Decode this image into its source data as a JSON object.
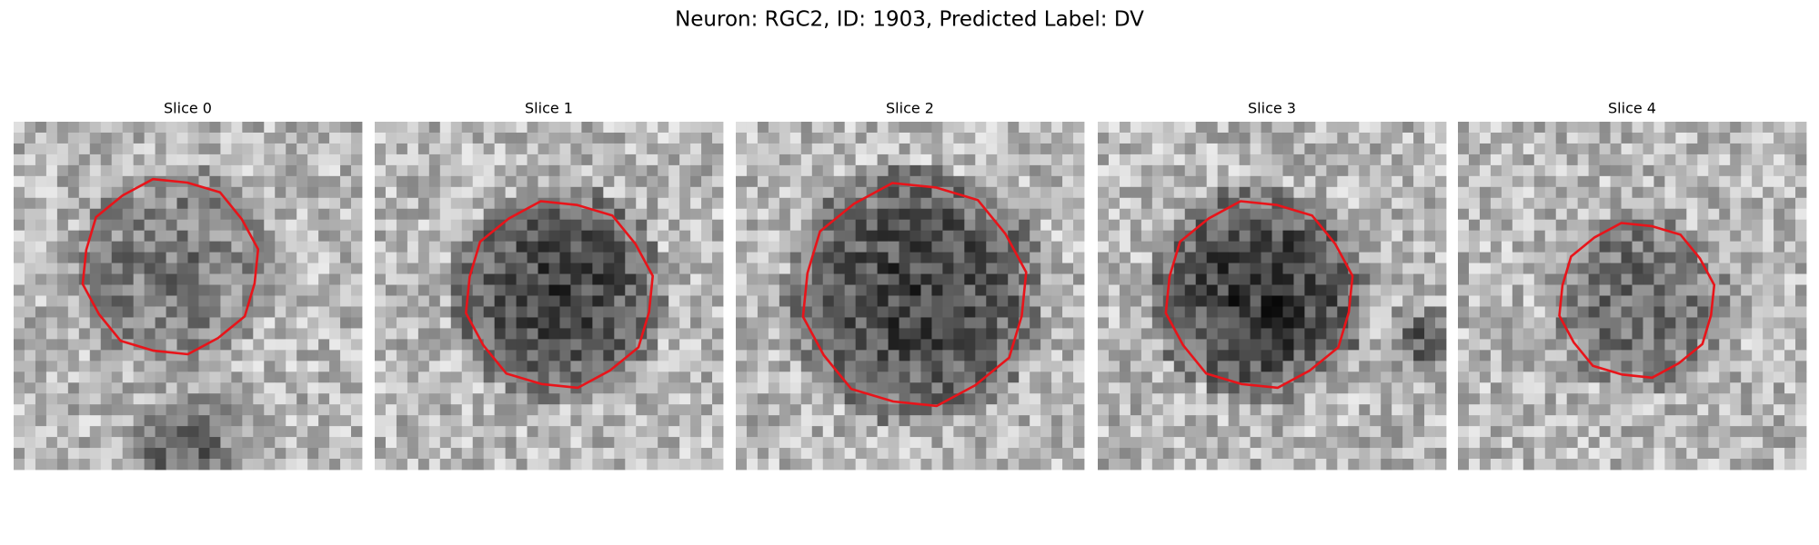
{
  "title": "Neuron: RGC2, ID: 1903, Predicted Label: DV",
  "panels": [
    {
      "title": "Slice 0"
    },
    {
      "title": "Slice 1"
    },
    {
      "title": "Slice 2"
    },
    {
      "title": "Slice 3"
    },
    {
      "title": "Slice 4"
    }
  ]
}
